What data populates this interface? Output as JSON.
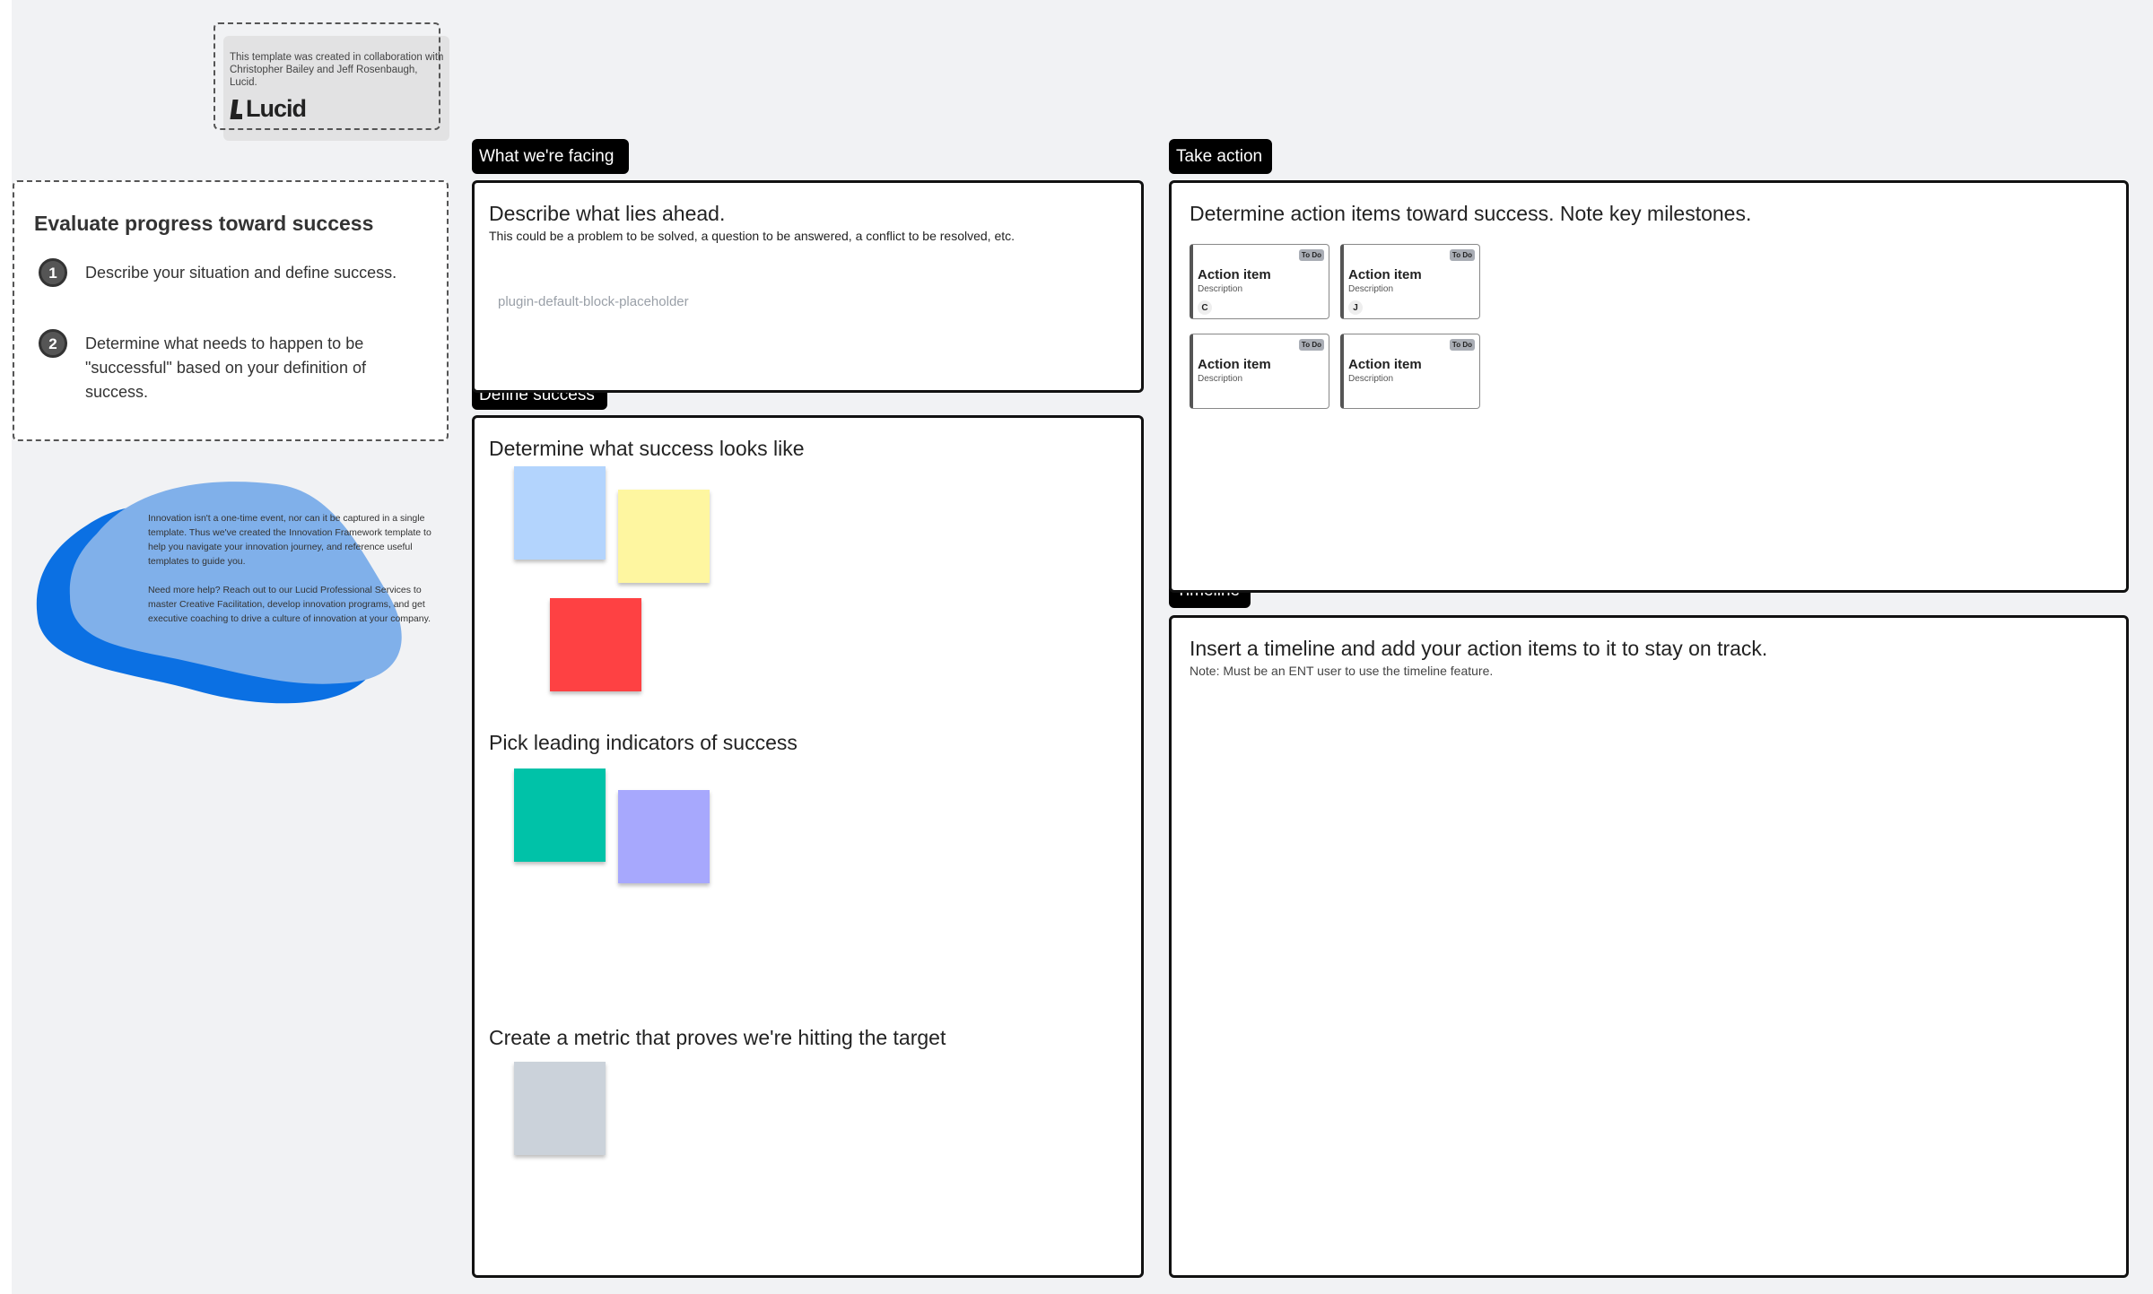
{
  "credit": {
    "text": "This template was created in collaboration with Christopher Bailey and Jeff Rosenbaugh, Lucid.",
    "logo": "Lucid"
  },
  "instructions": {
    "title": "Evaluate progress toward success",
    "steps": [
      {
        "num": "1",
        "text": "Describe your situation and define success."
      },
      {
        "num": "2",
        "text": "Determine what needs to happen to be \"successful\" based on your definition of success."
      }
    ]
  },
  "blob": {
    "para1": "Innovation isn't a one-time event, nor can it be captured in a single template. Thus we've created the Innovation Framework template to help you navigate your innovation journey, and reference useful templates to guide you.",
    "para2": "Need more help? Reach out to our Lucid Professional Services to master Creative Facilitation, develop innovation programs, and get executive coaching to drive a culture of innovation at your company.",
    "colors": {
      "back": "#0b70e3",
      "front": "#80b0ea"
    }
  },
  "facing": {
    "tag": "What we're facing",
    "title": "Describe what lies ahead.",
    "subtitle": "This could be a problem to be solved, a question to be answered, a conflict to be resolved, etc.",
    "placeholder": "plugin-default-block-placeholder"
  },
  "define": {
    "tag": "Define success",
    "sections": [
      "Determine what success looks like",
      "Pick leading indicators of success",
      "Create a metric that proves we're hitting the target"
    ],
    "sticky_colors": [
      "#b3d4fd",
      "#fef6a0",
      "#fe4143",
      "#00c2a8",
      "#a7a8fd",
      "#cbd2da"
    ]
  },
  "action": {
    "tag": "Take action",
    "title": "Determine action items toward success. Note key milestones.",
    "cards": [
      {
        "title": "Action item",
        "desc": "Description",
        "status": "To Do",
        "assignee": "C"
      },
      {
        "title": "Action item",
        "desc": "Description",
        "status": "To Do",
        "assignee": "J"
      },
      {
        "title": "Action item",
        "desc": "Description",
        "status": "To Do"
      },
      {
        "title": "Action item",
        "desc": "Description",
        "status": "To Do"
      }
    ]
  },
  "timeline": {
    "tag": "Timeline",
    "title": "Insert a timeline and add your action items to it to stay on track.",
    "note": "Note: Must be an ENT user to use the timeline feature."
  }
}
